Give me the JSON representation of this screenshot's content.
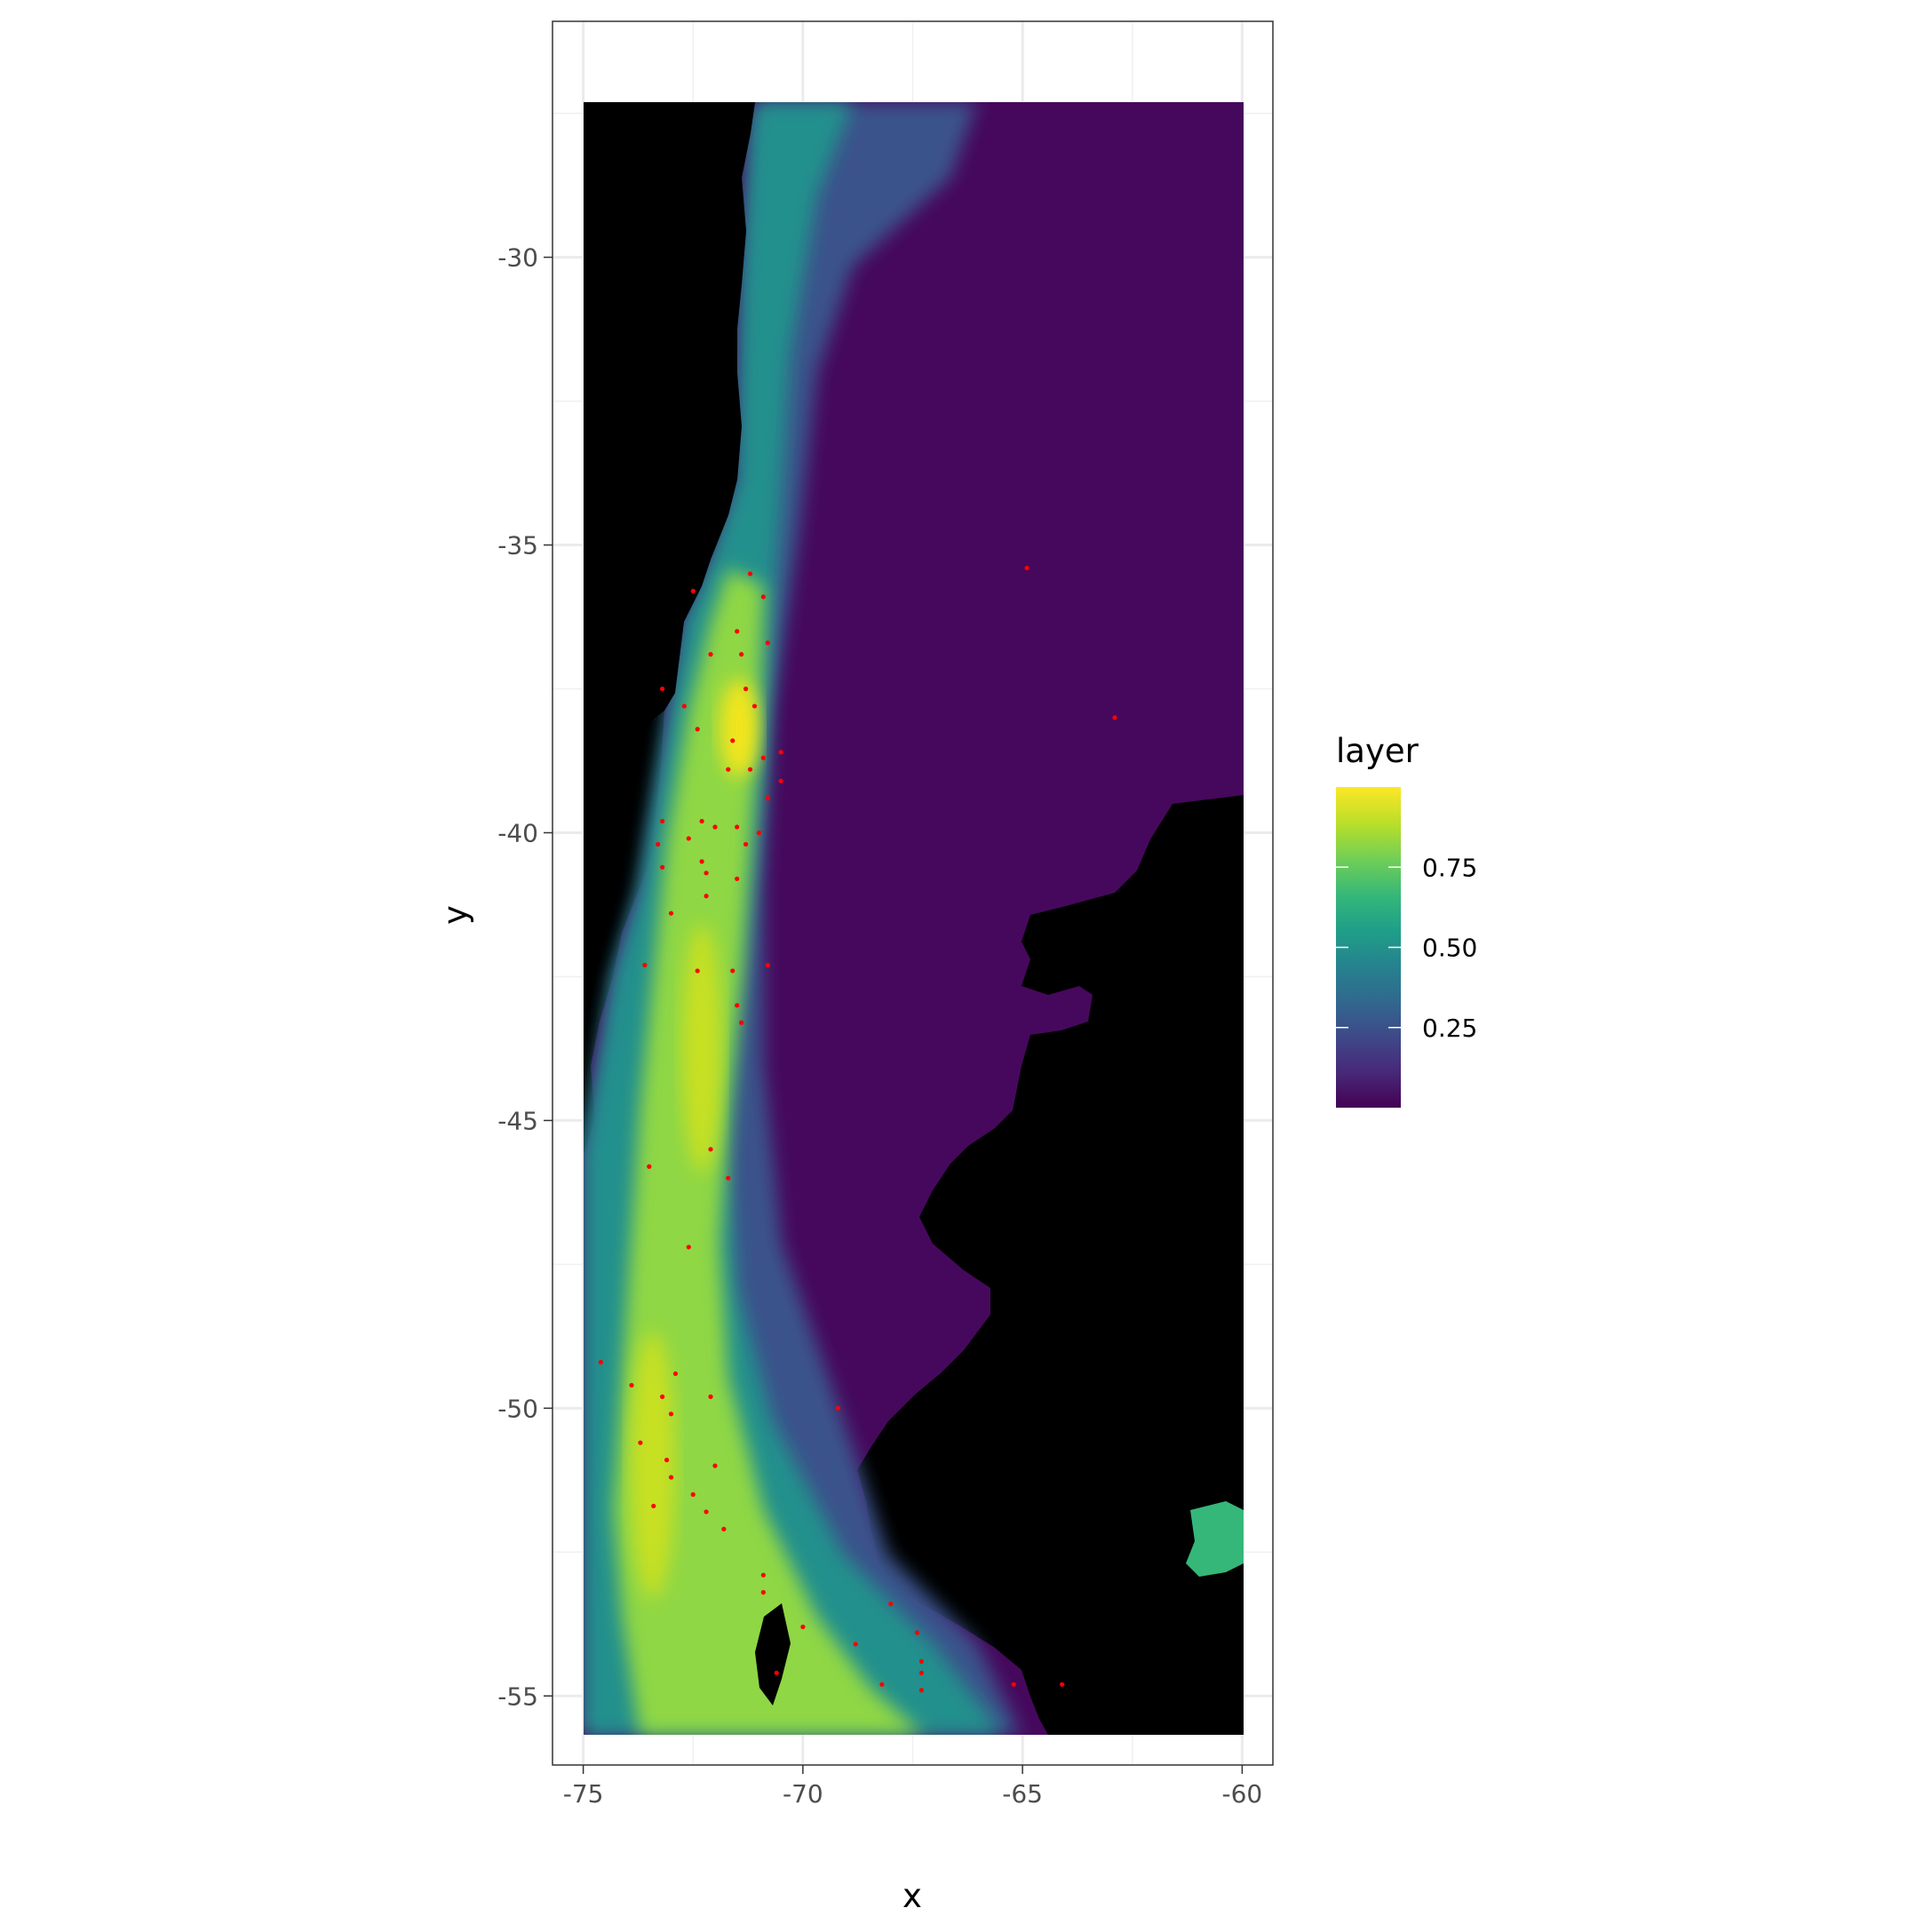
{
  "chart_data": {
    "type": "heatmap",
    "title": "",
    "xlabel": "x",
    "ylabel": "y",
    "xlim": [
      -75.7,
      -59.3
    ],
    "ylim": [
      -56.2,
      -25.9
    ],
    "raster_extent": {
      "x": [
        -75,
        -60
      ],
      "y": [
        -55,
        -27.3
      ]
    },
    "x_ticks": [
      {
        "value": -75,
        "label": "-75"
      },
      {
        "value": -70,
        "label": "-70"
      },
      {
        "value": -65,
        "label": "-65"
      },
      {
        "value": -60,
        "label": "-60"
      }
    ],
    "y_ticks": [
      {
        "value": -30,
        "label": "-30"
      },
      {
        "value": -35,
        "label": "-35"
      },
      {
        "value": -40,
        "label": "-40"
      },
      {
        "value": -45,
        "label": "-45"
      },
      {
        "value": -50,
        "label": "-50"
      },
      {
        "value": -55,
        "label": "-55"
      }
    ],
    "grid": true,
    "colormap": "viridis",
    "na_color": "#000000",
    "points_color": "#ff0000",
    "legend": {
      "title": "layer",
      "placement": "right",
      "range": [
        0,
        1
      ],
      "ticks": [
        {
          "value": 0.25,
          "label": "0.25"
        },
        {
          "value": 0.5,
          "label": "0.50"
        },
        {
          "value": 0.75,
          "label": "0.75"
        }
      ],
      "colors": [
        "#440154",
        "#482878",
        "#3e4989",
        "#31688e",
        "#26828e",
        "#1f9e89",
        "#35b779",
        "#6ece58",
        "#b5de2b",
        "#fde725"
      ]
    },
    "points": [
      {
        "x": -64.9,
        "y": -35.4
      },
      {
        "x": -62.9,
        "y": -38.0
      },
      {
        "x": -71.2,
        "y": -35.5
      },
      {
        "x": -72.5,
        "y": -35.8
      },
      {
        "x": -70.9,
        "y": -35.9
      },
      {
        "x": -71.5,
        "y": -36.5
      },
      {
        "x": -72.1,
        "y": -36.9
      },
      {
        "x": -71.4,
        "y": -36.9
      },
      {
        "x": -70.8,
        "y": -36.7
      },
      {
        "x": -73.2,
        "y": -37.5
      },
      {
        "x": -72.7,
        "y": -37.8
      },
      {
        "x": -71.3,
        "y": -37.5
      },
      {
        "x": -71.1,
        "y": -37.8
      },
      {
        "x": -72.4,
        "y": -38.2
      },
      {
        "x": -71.6,
        "y": -38.4
      },
      {
        "x": -70.5,
        "y": -38.6
      },
      {
        "x": -71.7,
        "y": -38.9
      },
      {
        "x": -71.2,
        "y": -38.9
      },
      {
        "x": -70.9,
        "y": -38.7
      },
      {
        "x": -70.5,
        "y": -39.1
      },
      {
        "x": -70.8,
        "y": -39.4
      },
      {
        "x": -73.2,
        "y": -39.8
      },
      {
        "x": -72.6,
        "y": -40.1
      },
      {
        "x": -72.3,
        "y": -39.8
      },
      {
        "x": -72.0,
        "y": -39.9
      },
      {
        "x": -71.5,
        "y": -39.9
      },
      {
        "x": -71.0,
        "y": -40.0
      },
      {
        "x": -73.3,
        "y": -40.2
      },
      {
        "x": -71.3,
        "y": -40.2
      },
      {
        "x": -72.3,
        "y": -40.5
      },
      {
        "x": -73.2,
        "y": -40.6
      },
      {
        "x": -72.2,
        "y": -40.7
      },
      {
        "x": -71.5,
        "y": -40.8
      },
      {
        "x": -72.2,
        "y": -41.1
      },
      {
        "x": -73.0,
        "y": -41.4
      },
      {
        "x": -73.6,
        "y": -42.3
      },
      {
        "x": -72.4,
        "y": -42.4
      },
      {
        "x": -71.6,
        "y": -42.4
      },
      {
        "x": -70.8,
        "y": -42.3
      },
      {
        "x": -71.5,
        "y": -43.0
      },
      {
        "x": -71.4,
        "y": -43.3
      },
      {
        "x": -72.1,
        "y": -45.5
      },
      {
        "x": -73.5,
        "y": -45.8
      },
      {
        "x": -71.7,
        "y": -46.0
      },
      {
        "x": -72.6,
        "y": -47.2
      },
      {
        "x": -74.6,
        "y": -49.2
      },
      {
        "x": -73.9,
        "y": -49.6
      },
      {
        "x": -72.9,
        "y": -49.4
      },
      {
        "x": -73.2,
        "y": -49.8
      },
      {
        "x": -72.1,
        "y": -49.8
      },
      {
        "x": -69.2,
        "y": -50.0
      },
      {
        "x": -73.0,
        "y": -50.1
      },
      {
        "x": -73.7,
        "y": -50.6
      },
      {
        "x": -73.1,
        "y": -50.9
      },
      {
        "x": -72.0,
        "y": -51.0
      },
      {
        "x": -73.0,
        "y": -51.2
      },
      {
        "x": -72.5,
        "y": -51.5
      },
      {
        "x": -73.4,
        "y": -51.7
      },
      {
        "x": -72.2,
        "y": -51.8
      },
      {
        "x": -71.8,
        "y": -52.1
      },
      {
        "x": -70.9,
        "y": -52.9
      },
      {
        "x": -70.9,
        "y": -53.2
      },
      {
        "x": -68.0,
        "y": -53.4
      },
      {
        "x": -70.0,
        "y": -53.8
      },
      {
        "x": -67.4,
        "y": -53.9
      },
      {
        "x": -68.8,
        "y": -54.1
      },
      {
        "x": -70.6,
        "y": -54.6
      },
      {
        "x": -67.3,
        "y": -54.4
      },
      {
        "x": -67.3,
        "y": -54.6
      },
      {
        "x": -68.2,
        "y": -54.8
      },
      {
        "x": -67.3,
        "y": -54.9
      },
      {
        "x": -65.2,
        "y": -54.8
      },
      {
        "x": -64.1,
        "y": -54.8
      }
    ]
  }
}
